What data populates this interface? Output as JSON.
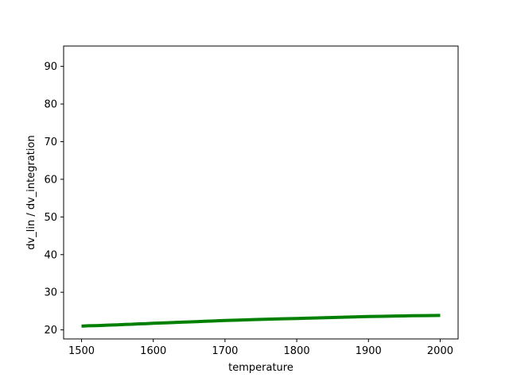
{
  "chart_data": {
    "type": "line",
    "title": "",
    "xlabel": "temperature",
    "ylabel": "dv_lin / dv_integration",
    "xlim": [
      1475,
      2025
    ],
    "ylim": [
      17.6,
      95.4
    ],
    "xticks": [
      1500,
      1600,
      1700,
      1800,
      1900,
      2000
    ],
    "yticks": [
      20,
      30,
      40,
      50,
      60,
      70,
      80,
      90
    ],
    "grid": false,
    "legend": "none",
    "series": [
      {
        "color": "#008000",
        "x": [
          1500,
          1510,
          1520,
          1530,
          1540,
          1550,
          1560,
          1570,
          1580,
          1590,
          1600,
          1620,
          1640,
          1660,
          1680,
          1700,
          1720,
          1740,
          1760,
          1780,
          1800,
          1820,
          1840,
          1860,
          1880,
          1900,
          1920,
          1940,
          1960,
          1980,
          2000
        ],
        "y": [
          21.0,
          21.1,
          21.15,
          21.2,
          21.3,
          21.35,
          21.45,
          21.5,
          21.6,
          21.65,
          21.75,
          21.9,
          22.05,
          22.2,
          22.35,
          22.5,
          22.6,
          22.75,
          22.85,
          22.95,
          23.05,
          23.15,
          23.25,
          23.35,
          23.45,
          23.55,
          23.6,
          23.7,
          23.75,
          23.8,
          23.85
        ]
      }
    ]
  }
}
